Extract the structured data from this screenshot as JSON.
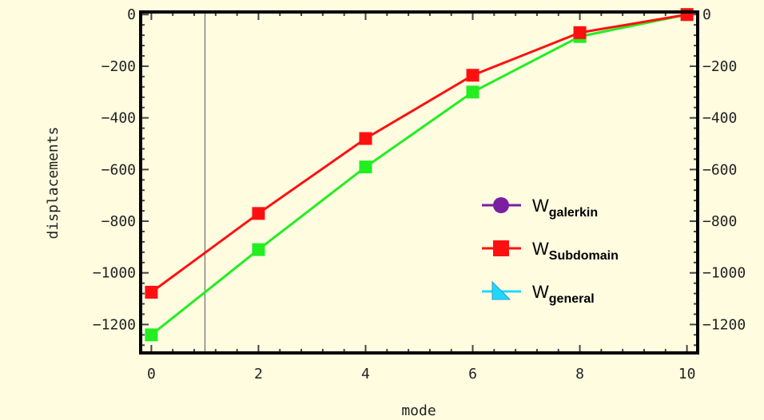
{
  "chart_data": {
    "type": "line",
    "xlabel": "mode",
    "ylabel": "displacements",
    "xlim": [
      -0.2,
      10.2
    ],
    "ylim": [
      -1310,
      10
    ],
    "xticks": [
      0,
      2,
      4,
      6,
      8,
      10
    ],
    "yticks": [
      0,
      -200,
      -400,
      -600,
      -800,
      -1000,
      -1200
    ],
    "xtick_labels": [
      "0",
      "2",
      "4",
      "6",
      "8",
      "10"
    ],
    "ytick_labels": [
      "0",
      "−200",
      "−400",
      "−600",
      "−800",
      "−1000",
      "−1200"
    ],
    "grid": false,
    "vertical_line_x": 1,
    "legend_position": "right-middle",
    "series": [
      {
        "name": "W_galerkin",
        "legend_main": "W",
        "legend_sub": "galerkin",
        "color": "#7a1fa2",
        "marker": "circle",
        "x": [],
        "y": []
      },
      {
        "name": "W_Subdomain",
        "legend_main": "W",
        "legend_sub": "Subdomain",
        "color": "#ff1010",
        "marker": "square",
        "x": [
          0,
          2,
          4,
          6,
          8,
          10
        ],
        "y": [
          -1075,
          -770,
          -480,
          -235,
          -70,
          0
        ]
      },
      {
        "name": "W_general",
        "legend_main": "W",
        "legend_sub": "general",
        "color": "#20d8ff",
        "marker": "triangle",
        "x": [],
        "y": []
      },
      {
        "name": "",
        "color": "#22ee22",
        "marker": "square",
        "x": [
          0,
          2,
          4,
          6,
          8,
          10
        ],
        "y": [
          -1240,
          -910,
          -590,
          -300,
          -85,
          0
        ]
      }
    ]
  }
}
